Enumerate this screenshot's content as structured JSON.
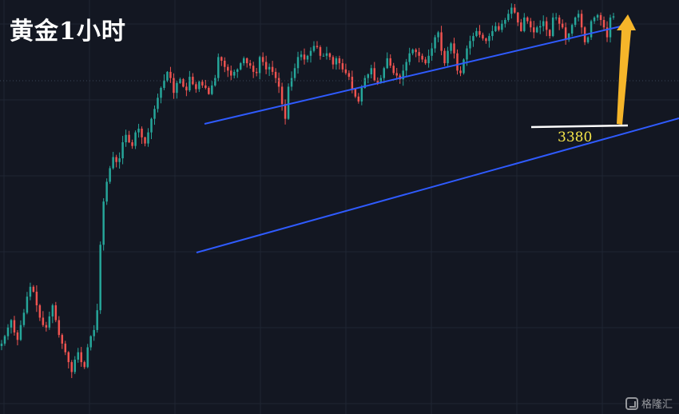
{
  "header": {
    "title": "黄金1小时"
  },
  "annotations": {
    "support_value": "3380"
  },
  "watermark": {
    "brand": "格隆汇"
  },
  "colors": {
    "background": "#131722",
    "grid": "#1f2633",
    "up_candle": "#26a69a",
    "down_candle": "#ef5350",
    "channel_line": "#2f5bff",
    "support_line": "#ffffff",
    "arrow": "#f5b52a",
    "support_label": "#f5e64a"
  },
  "chart_data": {
    "type": "candlestick",
    "instrument": "黄金",
    "timeframe": "1小时",
    "ylim": [
      3090,
      3420
    ],
    "close": [
      3147,
      3153,
      3160,
      3166,
      3156,
      3150,
      3162,
      3172,
      3185,
      3193,
      3189,
      3178,
      3168,
      3162,
      3160,
      3169,
      3178,
      3166,
      3154,
      3147,
      3140,
      3132,
      3124,
      3134,
      3140,
      3132,
      3128,
      3144,
      3153,
      3158,
      3174,
      3227,
      3262,
      3278,
      3289,
      3298,
      3294,
      3297,
      3310,
      3316,
      3310,
      3307,
      3318,
      3321,
      3314,
      3309,
      3318,
      3329,
      3337,
      3346,
      3354,
      3360,
      3367,
      3362,
      3350,
      3358,
      3361,
      3355,
      3352,
      3363,
      3357,
      3353,
      3359,
      3356,
      3354,
      3349,
      3356,
      3362,
      3379,
      3376,
      3371,
      3368,
      3364,
      3367,
      3369,
      3374,
      3378,
      3374,
      3372,
      3367,
      3366,
      3379,
      3375,
      3369,
      3371,
      3367,
      3362,
      3355,
      3341,
      3329,
      3355,
      3362,
      3370,
      3379,
      3381,
      3377,
      3380,
      3384,
      3388,
      3387,
      3380,
      3380,
      3382,
      3379,
      3373,
      3378,
      3374,
      3369,
      3366,
      3363,
      3353,
      3347,
      3343,
      3354,
      3362,
      3365,
      3370,
      3360,
      3358,
      3362,
      3370,
      3378,
      3372,
      3366,
      3364,
      3361,
      3368,
      3375,
      3382,
      3385,
      3383,
      3380,
      3377,
      3374,
      3380,
      3386,
      3395,
      3399,
      3384,
      3374,
      3384,
      3390,
      3382,
      3368,
      3366,
      3377,
      3386,
      3392,
      3396,
      3400,
      3397,
      3394,
      3392,
      3396,
      3400,
      3404,
      3401,
      3406,
      3409,
      3414,
      3419,
      3415,
      3407,
      3400,
      3411,
      3408,
      3403,
      3399,
      3403,
      3404,
      3408,
      3401,
      3396,
      3411,
      3411,
      3406,
      3403,
      3393,
      3398,
      3405,
      3411,
      3414,
      3403,
      3391,
      3395,
      3408,
      3411,
      3413,
      3409,
      3403,
      3395,
      3411,
      3412
    ]
  }
}
